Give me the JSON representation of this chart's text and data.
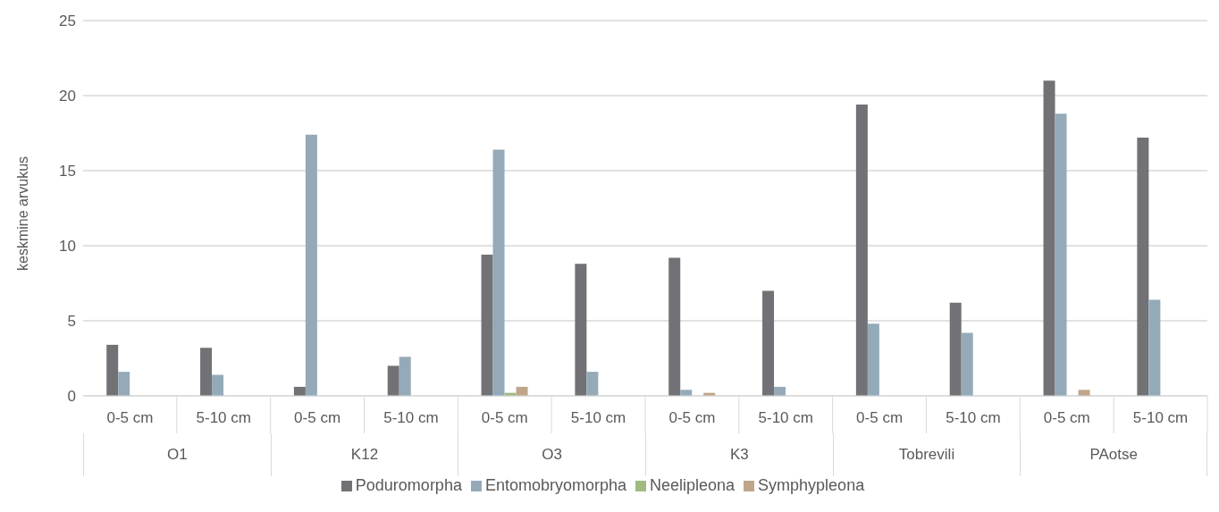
{
  "chart_data": {
    "type": "bar",
    "ylabel": "keskmine arvukus",
    "categories": [
      "0-5 cm",
      "5-10 cm",
      "0-5 cm",
      "5-10 cm",
      "0-5 cm",
      "5-10 cm",
      "0-5 cm",
      "5-10 cm",
      "0-5 cm",
      "5-10 cm",
      "0-5 cm",
      "5-10 cm"
    ],
    "annotations": [
      "O1",
      "K12",
      "O3",
      "K3",
      "Tobrevili",
      "PAotse"
    ],
    "series": [
      {
        "name": "Poduromorpha",
        "color": "#727176",
        "values": [
          3.4,
          3.2,
          0.6,
          2.0,
          9.4,
          8.8,
          9.2,
          7.0,
          19.4,
          6.2,
          21.0,
          17.2
        ]
      },
      {
        "name": "Entomobryomorpha",
        "color": "#95aab9",
        "values": [
          1.6,
          1.4,
          17.4,
          2.6,
          16.4,
          1.6,
          0.4,
          0.6,
          4.8,
          4.2,
          18.8,
          6.4
        ]
      },
      {
        "name": "Neelipleona",
        "color": "#9fba83",
        "values": [
          0,
          0,
          0,
          0,
          0.2,
          0,
          0,
          0,
          0,
          0,
          0,
          0
        ]
      },
      {
        "name": "Symphypleona",
        "color": "#bfa68a",
        "values": [
          0,
          0,
          0,
          0,
          0.6,
          0,
          0.2,
          0,
          0,
          0,
          0.4,
          0
        ]
      }
    ],
    "ylim": [
      0,
      25
    ],
    "yticks": [
      0,
      5,
      10,
      15,
      20,
      25
    ],
    "grid": "y",
    "legend": "bottom"
  }
}
